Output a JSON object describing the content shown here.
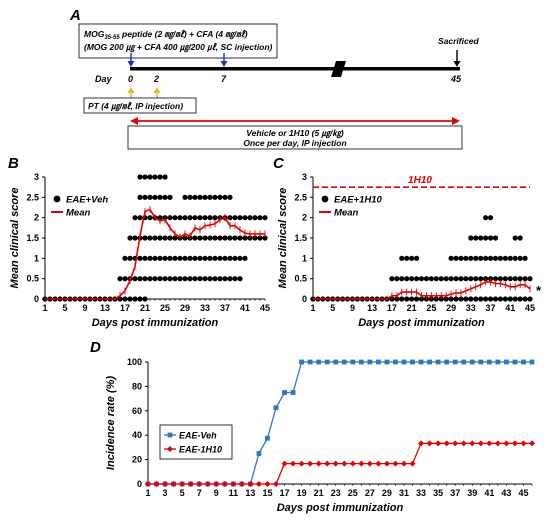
{
  "panels": {
    "A": {
      "label": "A",
      "mog_line1_pre": "MOG",
      "mog_sub": "35-55",
      "mog_line1_post": " peptide (2 ㎎/㎖) + CFA (4 ㎎/㎖)",
      "mog_line2": "(MOG 200 ㎍ + CFA 400 ㎍/200 ㎕, SC injection)",
      "sacrificed": "Sacrificed",
      "day_label": "Day",
      "days": [
        "0",
        "2",
        "7",
        "45"
      ],
      "pt_label": "PT (4 ㎍/㎖, IP injection)",
      "vehicle_line1": "Vehicle or 1H10 (5 ㎍/㎏)",
      "vehicle_line2": "Once per day, IP injection",
      "colors": {
        "injection_arrow": "#1f2bd1",
        "pt_arrow": "#f2b418",
        "treatment_arrow": "#e60000",
        "timeline": "#000000"
      }
    },
    "B": {
      "label": "B"
    },
    "C": {
      "label": "C",
      "dashed_label": "1H10",
      "asterisk": "*"
    },
    "D": {
      "label": "D"
    }
  },
  "chart_data": [
    {
      "panel": "B",
      "type": "scatter",
      "xlabel": "Days post immunization",
      "ylabel": "Mean clinical score",
      "xlim": [
        1,
        45
      ],
      "ylim": [
        0,
        3
      ],
      "x_ticks": [
        "1",
        "5",
        "9",
        "13",
        "17",
        "21",
        "25",
        "29",
        "33",
        "37",
        "41",
        "45"
      ],
      "y_ticks": [
        "0",
        "0.5",
        "1",
        "1.5",
        "2",
        "2.5",
        "3"
      ],
      "legend": [
        "EAE+Veh",
        "Mean"
      ],
      "legend_position": "upper-left",
      "series": [
        {
          "name": "EAE+Veh",
          "kind": "dots",
          "color": "#000000",
          "max_scores": [
            0,
            0,
            0,
            0,
            0,
            0,
            0,
            0,
            0,
            0,
            0,
            0,
            0,
            0,
            0,
            0.5,
            1,
            1.5,
            2,
            3,
            3,
            3,
            3,
            3,
            3,
            2.5,
            2,
            2,
            2.5,
            2.5,
            2.5,
            2.5,
            2.5,
            2.5,
            2.5,
            2.5,
            2.5,
            2.5,
            2,
            2,
            2,
            2,
            2,
            2,
            2
          ],
          "min_scores": [
            0,
            0,
            0,
            0,
            0,
            0,
            0,
            0,
            0,
            0,
            0,
            0,
            0,
            0,
            0,
            0,
            0,
            0,
            0,
            0,
            0,
            0.5,
            0.5,
            0.5,
            0.5,
            0.5,
            0.5,
            0.5,
            0.5,
            0.5,
            0.5,
            0.5,
            0.5,
            0.5,
            0.5,
            0.5,
            0.5,
            0.5,
            0.5,
            0.5,
            1,
            1.5,
            1.5,
            1.5,
            1.5
          ]
        },
        {
          "name": "Mean",
          "kind": "line",
          "color": "#e60000",
          "values": [
            0,
            0,
            0,
            0,
            0,
            0,
            0,
            0,
            0,
            0,
            0,
            0,
            0,
            0,
            0,
            0.08,
            0.2,
            0.45,
            0.8,
            1.55,
            2.15,
            2.2,
            2.0,
            1.92,
            1.95,
            1.75,
            1.6,
            1.52,
            1.6,
            1.55,
            1.75,
            1.7,
            1.8,
            1.82,
            1.85,
            1.95,
            2.0,
            1.8,
            1.8,
            1.7,
            1.62,
            1.6,
            1.6,
            1.6,
            1.6
          ]
        }
      ]
    },
    {
      "panel": "C",
      "type": "scatter",
      "xlabel": "Days post immunization",
      "ylabel": "Mean clinical score",
      "xlim": [
        1,
        45
      ],
      "ylim": [
        0,
        3
      ],
      "x_ticks": [
        "1",
        "5",
        "9",
        "13",
        "17",
        "21",
        "25",
        "29",
        "33",
        "37",
        "41",
        "45"
      ],
      "y_ticks": [
        "0",
        "0.5",
        "1",
        "1.5",
        "2",
        "2.5",
        "3"
      ],
      "legend": [
        "EAE+1H10",
        "Mean"
      ],
      "legend_position": "upper-left",
      "series": [
        {
          "name": "EAE+1H10",
          "kind": "dots",
          "color": "#000000",
          "max_scores": [
            0,
            0,
            0,
            0,
            0,
            0,
            0,
            0,
            0,
            0,
            0,
            0,
            0,
            0,
            0,
            0,
            0.5,
            0.5,
            1,
            1,
            1,
            1,
            0.5,
            0.5,
            0.5,
            0.5,
            0.5,
            0.5,
            1,
            1,
            1,
            1,
            1.5,
            1.5,
            1.5,
            2,
            2,
            1.5,
            1,
            1,
            1,
            1.5,
            1.5,
            1,
            0.5
          ],
          "min_scores": [
            0,
            0,
            0,
            0,
            0,
            0,
            0,
            0,
            0,
            0,
            0,
            0,
            0,
            0,
            0,
            0,
            0,
            0,
            0,
            0,
            0,
            0,
            0,
            0,
            0,
            0,
            0,
            0,
            0,
            0,
            0,
            0,
            0,
            0,
            0,
            0,
            0,
            0,
            0,
            0,
            0,
            0,
            0,
            0,
            0
          ]
        },
        {
          "name": "Mean",
          "kind": "line",
          "color": "#e60000",
          "values": [
            0,
            0,
            0,
            0,
            0,
            0,
            0,
            0,
            0,
            0,
            0,
            0,
            0,
            0,
            0,
            0,
            0.08,
            0.08,
            0.17,
            0.17,
            0.17,
            0.17,
            0.08,
            0.08,
            0.08,
            0.08,
            0.08,
            0.08,
            0.12,
            0.15,
            0.15,
            0.2,
            0.25,
            0.3,
            0.35,
            0.42,
            0.42,
            0.38,
            0.38,
            0.35,
            0.3,
            0.3,
            0.35,
            0.35,
            0.25
          ]
        },
        {
          "name": "1H10",
          "kind": "dashed-reference",
          "color": "#e60000",
          "y": 2.75
        }
      ]
    },
    {
      "panel": "D",
      "type": "line",
      "xlabel": "Days post immunization",
      "ylabel": "Incidence rate (%)",
      "xlim": [
        1,
        46
      ],
      "ylim": [
        0,
        100
      ],
      "x_ticks": [
        "1",
        "3",
        "5",
        "7",
        "9",
        "11",
        "13",
        "15",
        "17",
        "19",
        "21",
        "23",
        "25",
        "27",
        "29",
        "31",
        "33",
        "35",
        "37",
        "39",
        "41",
        "43",
        "45"
      ],
      "y_ticks": [
        "0",
        "20",
        "40",
        "60",
        "80",
        "100"
      ],
      "legend": [
        "EAE-Veh",
        "EAE-1H10"
      ],
      "legend_position": "left",
      "series": [
        {
          "name": "EAE-Veh",
          "color": "#2e75c7",
          "marker": "square",
          "values": [
            0,
            0,
            0,
            0,
            0,
            0,
            0,
            0,
            0,
            0,
            0,
            0,
            0,
            25,
            37.5,
            62.5,
            75,
            75,
            100,
            100,
            100,
            100,
            100,
            100,
            100,
            100,
            100,
            100,
            100,
            100,
            100,
            100,
            100,
            100,
            100,
            100,
            100,
            100,
            100,
            100,
            100,
            100,
            100,
            100,
            100,
            100
          ]
        },
        {
          "name": "EAE-1H10",
          "color": "#e60000",
          "marker": "diamond",
          "values": [
            0,
            0,
            0,
            0,
            0,
            0,
            0,
            0,
            0,
            0,
            0,
            0,
            0,
            0,
            0,
            0,
            16.7,
            16.7,
            16.7,
            16.7,
            16.7,
            16.7,
            16.7,
            16.7,
            16.7,
            16.7,
            16.7,
            16.7,
            16.7,
            16.7,
            16.7,
            16.7,
            33.3,
            33.3,
            33.3,
            33.3,
            33.3,
            33.3,
            33.3,
            33.3,
            33.3,
            33.3,
            33.3,
            33.3,
            33.3,
            33.3
          ]
        }
      ]
    }
  ]
}
